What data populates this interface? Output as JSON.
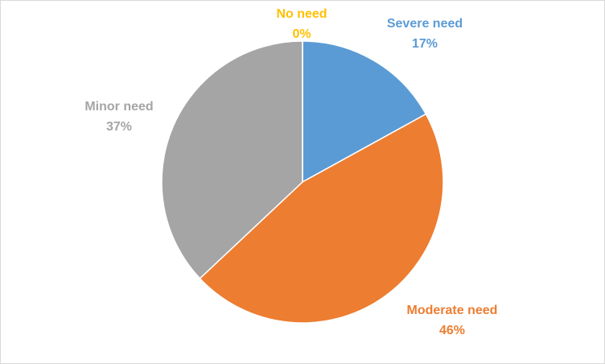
{
  "chart_data": {
    "type": "pie",
    "categories": [
      "Severe need",
      "Moderate need",
      "Minor need",
      "No need"
    ],
    "values": [
      17,
      46,
      37,
      0
    ],
    "value_labels": [
      "17%",
      "46%",
      "37%",
      "0%"
    ],
    "colors": [
      "#5b9bd5",
      "#ed7d31",
      "#a5a5a5",
      "#ffc000"
    ]
  }
}
